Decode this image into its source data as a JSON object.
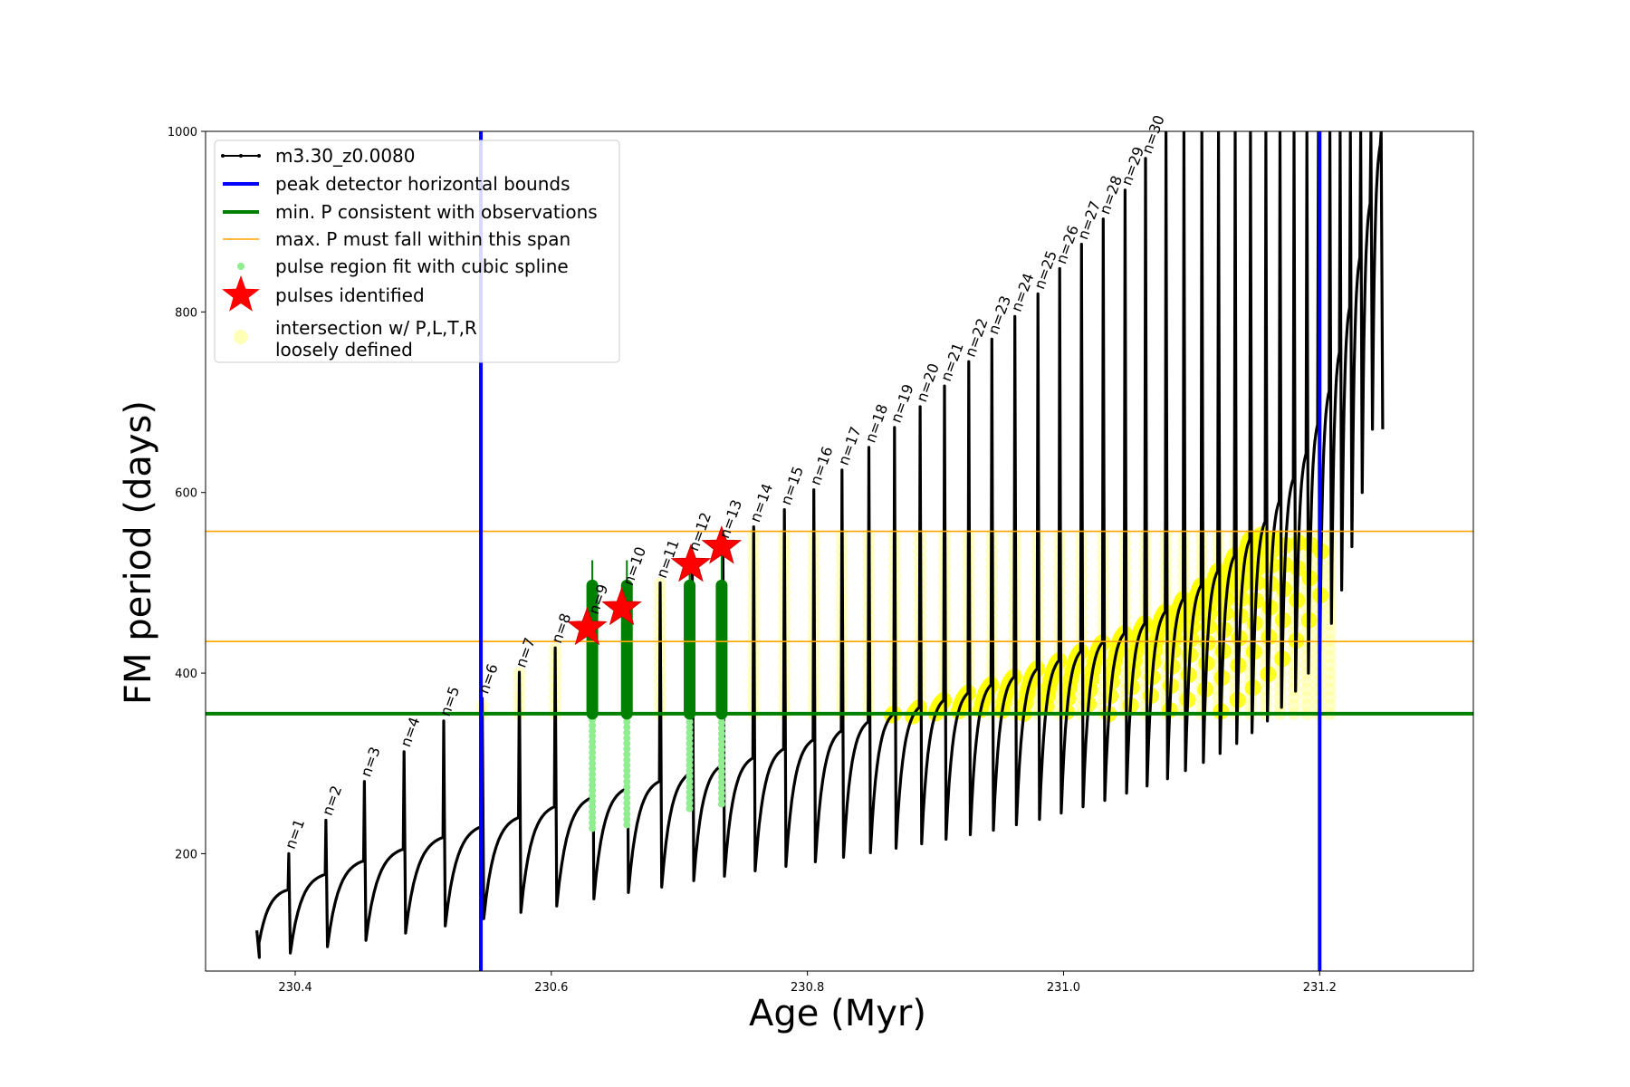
{
  "chart_data": {
    "type": "line",
    "xlabel": "Age (Myr)",
    "ylabel": "FM period (days)",
    "xlim": [
      230.33,
      231.32
    ],
    "ylim": [
      70,
      1000
    ],
    "x_ticks": [
      "230.4",
      "230.6",
      "230.8",
      "231.0",
      "231.2"
    ],
    "x_tick_values": [
      230.4,
      230.6,
      230.8,
      231.0,
      231.2
    ],
    "y_ticks": [
      "200",
      "400",
      "600",
      "800",
      "1000"
    ],
    "y_tick_values": [
      200,
      400,
      600,
      800,
      1000
    ],
    "legend_position": "top-left",
    "legend": [
      {
        "label": "m3.30_z0.0080",
        "kind": "line-marker",
        "color": "#000000"
      },
      {
        "label": "peak detector horizontal bounds",
        "kind": "line",
        "color": "#0000ff"
      },
      {
        "label": "min. P consistent with observations",
        "kind": "line",
        "color": "#008000"
      },
      {
        "label": "max. P must fall within this span",
        "kind": "thin-line",
        "color": "#ffa500"
      },
      {
        "label": "pulse region fit with cubic spline",
        "kind": "dot",
        "color": "#90ee90"
      },
      {
        "label": "pulses identified",
        "kind": "star",
        "color": "#ff0000"
      },
      {
        "label": "intersection w/ P,L,T,R",
        "label2": "loosely defined",
        "kind": "circle",
        "color": "#ffff99"
      }
    ],
    "vertical_lines": {
      "color": "#0000ff",
      "x": [
        230.545,
        231.2
      ]
    },
    "min_period_line": {
      "color": "#008000",
      "y": 355
    },
    "max_period_span": {
      "color": "#ffa500",
      "y": [
        435,
        557
      ]
    },
    "pulses": [
      {
        "label": "n=1",
        "x": 230.395,
        "peak": 200,
        "pre": 160,
        "trough": 85
      },
      {
        "label": "n=2",
        "x": 230.424,
        "peak": 237,
        "pre": 177,
        "trough": 90
      },
      {
        "label": "n=3",
        "x": 230.454,
        "peak": 280,
        "pre": 192,
        "trough": 97
      },
      {
        "label": "n=4",
        "x": 230.485,
        "peak": 313,
        "pre": 205,
        "trough": 104
      },
      {
        "label": "n=5",
        "x": 230.516,
        "peak": 347,
        "pre": 218,
        "trough": 112
      },
      {
        "label": "n=6",
        "x": 230.546,
        "peak": 372,
        "pre": 230,
        "trough": 120
      },
      {
        "label": "n=7",
        "x": 230.575,
        "peak": 401,
        "pre": 240,
        "trough": 128
      },
      {
        "label": "n=8",
        "x": 230.603,
        "peak": 428,
        "pre": 252,
        "trough": 135
      },
      {
        "label": "n=9",
        "x": 230.632,
        "peak": 460,
        "pre": 262,
        "trough": 142
      },
      {
        "label": "n=10",
        "x": 230.659,
        "peak": 492,
        "pre": 272,
        "trough": 150
      },
      {
        "label": "n=11",
        "x": 230.685,
        "peak": 500,
        "pre": 280,
        "trough": 157
      },
      {
        "label": "n=12",
        "x": 230.71,
        "peak": 530,
        "pre": 290,
        "trough": 163
      },
      {
        "label": "n=13",
        "x": 230.734,
        "peak": 544,
        "pre": 298,
        "trough": 170
      },
      {
        "label": "n=14",
        "x": 230.758,
        "peak": 562,
        "pre": 306,
        "trough": 175
      },
      {
        "label": "n=15",
        "x": 230.782,
        "peak": 581,
        "pre": 316,
        "trough": 181
      },
      {
        "label": "n=16",
        "x": 230.805,
        "peak": 603,
        "pre": 326,
        "trough": 186
      },
      {
        "label": "n=17",
        "x": 230.827,
        "peak": 625,
        "pre": 336,
        "trough": 191
      },
      {
        "label": "n=18",
        "x": 230.848,
        "peak": 650,
        "pre": 346,
        "trough": 196
      },
      {
        "label": "n=19",
        "x": 230.868,
        "peak": 672,
        "pre": 355,
        "trough": 201
      },
      {
        "label": "n=20",
        "x": 230.888,
        "peak": 695,
        "pre": 362,
        "trough": 206
      },
      {
        "label": "n=21",
        "x": 230.907,
        "peak": 718,
        "pre": 370,
        "trough": 211
      },
      {
        "label": "n=22",
        "x": 230.926,
        "peak": 745,
        "pre": 378,
        "trough": 216
      },
      {
        "label": "n=23",
        "x": 230.944,
        "peak": 770,
        "pre": 387,
        "trough": 221
      },
      {
        "label": "n=24",
        "x": 230.962,
        "peak": 795,
        "pre": 396,
        "trough": 226
      },
      {
        "label": "n=25",
        "x": 230.98,
        "peak": 820,
        "pre": 405,
        "trough": 232
      },
      {
        "label": "n=26",
        "x": 230.997,
        "peak": 848,
        "pre": 414,
        "trough": 238
      },
      {
        "label": "n=27",
        "x": 231.014,
        "peak": 875,
        "pre": 424,
        "trough": 245
      },
      {
        "label": "n=28",
        "x": 231.031,
        "peak": 903,
        "pre": 434,
        "trough": 252
      },
      {
        "label": "n=29",
        "x": 231.048,
        "peak": 935,
        "pre": 444,
        "trough": 259
      },
      {
        "label": "n=30",
        "x": 231.064,
        "peak": 970,
        "pre": 455,
        "trough": 267
      },
      {
        "label": "",
        "x": 231.08,
        "peak": 1000,
        "pre": 468,
        "trough": 275
      },
      {
        "label": "",
        "x": 231.094,
        "peak": 1000,
        "pre": 482,
        "trough": 283
      },
      {
        "label": "",
        "x": 231.108,
        "peak": 1000,
        "pre": 497,
        "trough": 292
      },
      {
        "label": "",
        "x": 231.121,
        "peak": 1000,
        "pre": 513,
        "trough": 301
      },
      {
        "label": "",
        "x": 231.134,
        "peak": 1000,
        "pre": 530,
        "trough": 311
      },
      {
        "label": "",
        "x": 231.146,
        "peak": 1000,
        "pre": 548,
        "trough": 322
      },
      {
        "label": "",
        "x": 231.158,
        "peak": 1000,
        "pre": 568,
        "trough": 334
      },
      {
        "label": "",
        "x": 231.169,
        "peak": 1000,
        "pre": 590,
        "trough": 347
      },
      {
        "label": "",
        "x": 231.18,
        "peak": 1000,
        "pre": 615,
        "trough": 362
      },
      {
        "label": "",
        "x": 231.19,
        "peak": 1000,
        "pre": 643,
        "trough": 380
      },
      {
        "label": "",
        "x": 231.199,
        "peak": 1000,
        "pre": 675,
        "trough": 400
      },
      {
        "label": "",
        "x": 231.208,
        "peak": 1000,
        "pre": 712,
        "trough": 425
      },
      {
        "label": "",
        "x": 231.216,
        "peak": 1000,
        "pre": 755,
        "trough": 455
      },
      {
        "label": "",
        "x": 231.224,
        "peak": 1000,
        "pre": 805,
        "trough": 492
      },
      {
        "label": "",
        "x": 231.232,
        "peak": 1000,
        "pre": 860,
        "trough": 540
      },
      {
        "label": "",
        "x": 231.24,
        "peak": 1000,
        "pre": 920,
        "trough": 600
      },
      {
        "label": "",
        "x": 231.248,
        "peak": 1000,
        "pre": 985,
        "trough": 670
      }
    ],
    "start_point": {
      "x": 230.37,
      "y": 115
    },
    "pulses_identified": [
      {
        "x": 230.628,
        "y": 450
      },
      {
        "x": 230.655,
        "y": 472
      },
      {
        "x": 230.709,
        "y": 520
      },
      {
        "x": 230.733,
        "y": 540
      }
    ],
    "spline_fit_pulses": [
      {
        "x": 230.632,
        "low": 228,
        "mid": 355,
        "top": 497,
        "spike": 525
      },
      {
        "x": 230.659,
        "low": 232,
        "mid": 355,
        "top": 497,
        "spike": 525
      },
      {
        "x": 230.708,
        "low": 250,
        "mid": 355,
        "top": 497,
        "spike": 520
      },
      {
        "x": 230.733,
        "low": 255,
        "mid": 355,
        "top": 497,
        "spike": 545
      }
    ]
  }
}
